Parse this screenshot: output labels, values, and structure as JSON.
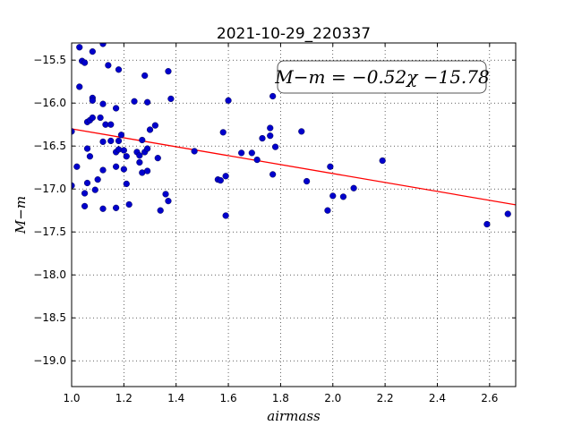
{
  "chart_data": {
    "type": "scatter",
    "title": "2021-10-29_220337",
    "xlabel": "airmass",
    "ylabel": "M−m",
    "xlim": [
      1.0,
      2.7
    ],
    "ylim": [
      -15.3,
      -19.3
    ],
    "y_inverted": true,
    "grid": true,
    "grid_style": "dotted",
    "x_ticks": [
      1.0,
      1.2,
      1.4,
      1.6,
      1.8,
      2.0,
      2.2,
      2.4,
      2.6
    ],
    "x_tick_labels": [
      "1.0",
      "1.2",
      "1.4",
      "1.6",
      "1.8",
      "2.0",
      "2.2",
      "2.4",
      "2.6"
    ],
    "y_ticks": [
      -15.5,
      -16.0,
      -16.5,
      -17.0,
      -17.5,
      -18.0,
      -18.5,
      -19.0
    ],
    "y_tick_labels": [
      "−15.5",
      "−16.0",
      "−16.5",
      "−17.0",
      "−17.5",
      "−18.0",
      "−18.5",
      "−19.0"
    ],
    "annotation": "M−m = −0.52χ −15.78",
    "annotation_position": "top-right",
    "fit_line": {
      "slope": -0.52,
      "intercept": -15.78,
      "color": "#ff0000"
    },
    "point_color": "#0000cc",
    "points": [
      [
        1.0,
        -16.33
      ],
      [
        1.0,
        -16.96
      ],
      [
        1.02,
        -16.74
      ],
      [
        1.03,
        -15.35
      ],
      [
        1.03,
        -15.81
      ],
      [
        1.04,
        -15.51
      ],
      [
        1.05,
        -15.53
      ],
      [
        1.05,
        -17.05
      ],
      [
        1.05,
        -17.2
      ],
      [
        1.06,
        -16.22
      ],
      [
        1.06,
        -16.53
      ],
      [
        1.06,
        -16.93
      ],
      [
        1.07,
        -16.2
      ],
      [
        1.07,
        -16.62
      ],
      [
        1.08,
        -15.4
      ],
      [
        1.08,
        -15.94
      ],
      [
        1.08,
        -15.97
      ],
      [
        1.08,
        -16.17
      ],
      [
        1.09,
        -17.01
      ],
      [
        1.1,
        -16.89
      ],
      [
        1.11,
        -16.17
      ],
      [
        1.12,
        -15.31
      ],
      [
        1.12,
        -16.01
      ],
      [
        1.12,
        -16.45
      ],
      [
        1.12,
        -16.78
      ],
      [
        1.12,
        -17.23
      ],
      [
        1.13,
        -16.25
      ],
      [
        1.14,
        -15.56
      ],
      [
        1.15,
        -16.25
      ],
      [
        1.15,
        -16.44
      ],
      [
        1.17,
        -16.06
      ],
      [
        1.17,
        -17.22
      ],
      [
        1.17,
        -16.57
      ],
      [
        1.17,
        -16.74
      ],
      [
        1.18,
        -15.61
      ],
      [
        1.18,
        -16.44
      ],
      [
        1.18,
        -16.54
      ],
      [
        1.19,
        -16.37
      ],
      [
        1.2,
        -16.55
      ],
      [
        1.2,
        -16.77
      ],
      [
        1.21,
        -16.62
      ],
      [
        1.21,
        -16.94
      ],
      [
        1.22,
        -17.18
      ],
      [
        1.24,
        -15.98
      ],
      [
        1.25,
        -16.57
      ],
      [
        1.26,
        -16.61
      ],
      [
        1.26,
        -16.69
      ],
      [
        1.27,
        -16.43
      ],
      [
        1.27,
        -16.81
      ],
      [
        1.28,
        -16.57
      ],
      [
        1.28,
        -15.68
      ],
      [
        1.29,
        -15.99
      ],
      [
        1.29,
        -16.53
      ],
      [
        1.29,
        -16.79
      ],
      [
        1.3,
        -16.31
      ],
      [
        1.32,
        -16.26
      ],
      [
        1.33,
        -16.64
      ],
      [
        1.34,
        -17.25
      ],
      [
        1.36,
        -17.06
      ],
      [
        1.37,
        -17.14
      ],
      [
        1.37,
        -15.63
      ],
      [
        1.38,
        -15.95
      ],
      [
        1.47,
        -16.56
      ],
      [
        1.56,
        -16.89
      ],
      [
        1.57,
        -16.9
      ],
      [
        1.58,
        -16.34
      ],
      [
        1.59,
        -16.85
      ],
      [
        1.59,
        -17.31
      ],
      [
        1.6,
        -15.97
      ],
      [
        1.65,
        -16.58
      ],
      [
        1.69,
        -16.58
      ],
      [
        1.71,
        -16.66
      ],
      [
        1.73,
        -16.41
      ],
      [
        1.76,
        -16.38
      ],
      [
        1.76,
        -16.29
      ],
      [
        1.77,
        -15.92
      ],
      [
        1.77,
        -16.83
      ],
      [
        1.78,
        -16.51
      ],
      [
        1.88,
        -16.33
      ],
      [
        1.9,
        -16.91
      ],
      [
        1.98,
        -17.25
      ],
      [
        1.99,
        -16.74
      ],
      [
        2.0,
        -17.08
      ],
      [
        2.04,
        -17.09
      ],
      [
        2.08,
        -16.99
      ],
      [
        2.19,
        -16.67
      ],
      [
        2.59,
        -17.41
      ],
      [
        2.67,
        -17.29
      ]
    ]
  }
}
